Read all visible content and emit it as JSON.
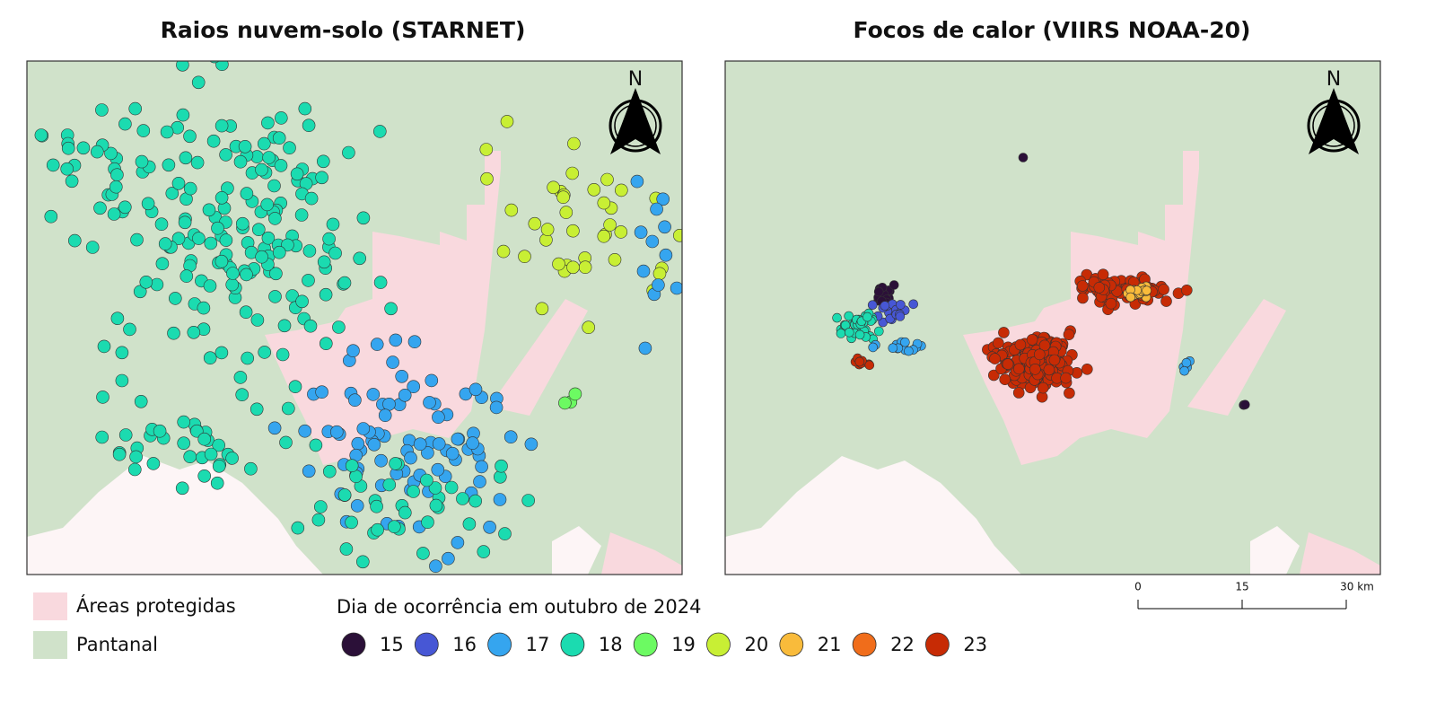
{
  "panels": [
    {
      "title": "Raios nuvem-solo (STARNET)"
    },
    {
      "title": "Focos de calor (VIIRS NOAA-20)"
    }
  ],
  "north_label": "N",
  "legend": {
    "areas": [
      {
        "label": "Áreas protegidas",
        "color": "#f9d9de"
      },
      {
        "label": "Pantanal",
        "color": "#d0e2ca"
      }
    ],
    "title": "Dia de ocorrência em outubro de 2024",
    "days": [
      {
        "value": 15,
        "color": "#2b1038"
      },
      {
        "value": 16,
        "color": "#4757d5"
      },
      {
        "value": 17,
        "color": "#35a5ef"
      },
      {
        "value": 18,
        "color": "#1bdbb0"
      },
      {
        "value": 19,
        "color": "#6cfa62"
      },
      {
        "value": 20,
        "color": "#c8ef34"
      },
      {
        "value": 21,
        "color": "#f9bb3b"
      },
      {
        "value": 22,
        "color": "#f06d1b"
      },
      {
        "value": 23,
        "color": "#c72b05"
      }
    ]
  },
  "scale_bar": {
    "ticks": [
      0,
      15,
      {
        "value": 30,
        "label": "30 km"
      }
    ]
  }
}
